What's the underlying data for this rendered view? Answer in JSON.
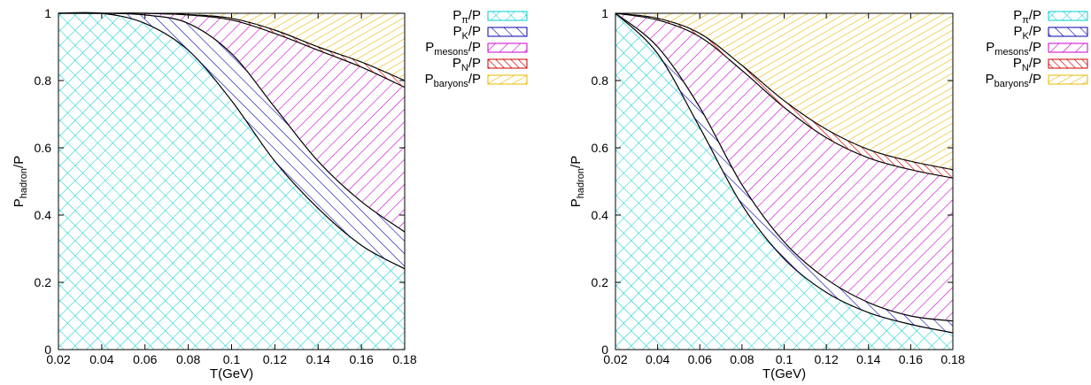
{
  "chart_data": [
    {
      "type": "area",
      "xlabel": "T(GeV)",
      "ylabel": "P_hadron/P",
      "xlim": [
        0.02,
        0.18
      ],
      "ylim": [
        0,
        1
      ],
      "xticks": [
        "0.02",
        "0.04",
        "0.06",
        "0.08",
        "0.1",
        "0.12",
        "0.14",
        "0.16",
        "0.18"
      ],
      "yticks": [
        "0",
        "0.2",
        "0.4",
        "0.6",
        "0.8",
        "1"
      ],
      "x": [
        0.02,
        0.04,
        0.06,
        0.08,
        0.1,
        0.12,
        0.14,
        0.16,
        0.18
      ],
      "series": [
        {
          "name": "P_π/P",
          "color": "#00cccc",
          "hatch": "crosshatch",
          "upper": [
            1.0,
            1.0,
            0.97,
            0.89,
            0.74,
            0.56,
            0.42,
            0.31,
            0.24
          ]
        },
        {
          "name": "P_K/P",
          "color": "#0000aa",
          "hatch": "diag-down",
          "upper": [
            1.0,
            1.0,
            0.995,
            0.97,
            0.88,
            0.72,
            0.56,
            0.44,
            0.35
          ]
        },
        {
          "name": "P_mesons/P",
          "color": "#cc00cc",
          "hatch": "diag-up",
          "upper": [
            1.0,
            1.0,
            1.0,
            0.995,
            0.98,
            0.94,
            0.89,
            0.84,
            0.78
          ]
        },
        {
          "name": "P_N/P",
          "color": "#cc0000",
          "hatch": "diag-down-dense",
          "upper": [
            1.0,
            1.0,
            1.0,
            0.996,
            0.985,
            0.95,
            0.9,
            0.855,
            0.8
          ]
        },
        {
          "name": "P_baryons/P",
          "color": "#e6b800",
          "hatch": "diag-up-dense",
          "upper": [
            1.0,
            1.0,
            1.0,
            1.0,
            1.0,
            1.0,
            1.0,
            1.0,
            1.0
          ]
        }
      ]
    },
    {
      "type": "area",
      "xlabel": "T(GeV)",
      "ylabel": "P_hadron/P",
      "xlim": [
        0.02,
        0.18
      ],
      "ylim": [
        0,
        1
      ],
      "xticks": [
        "0.02",
        "0.04",
        "0.06",
        "0.08",
        "0.1",
        "0.12",
        "0.14",
        "0.16",
        "0.18"
      ],
      "yticks": [
        "0",
        "0.2",
        "0.4",
        "0.6",
        "0.8",
        "1"
      ],
      "x": [
        0.02,
        0.04,
        0.06,
        0.08,
        0.1,
        0.12,
        0.14,
        0.16,
        0.18
      ],
      "series": [
        {
          "name": "P_π/P",
          "color": "#00cccc",
          "hatch": "crosshatch",
          "upper": [
            1.0,
            0.88,
            0.66,
            0.43,
            0.27,
            0.17,
            0.11,
            0.075,
            0.05
          ]
        },
        {
          "name": "P_K/P",
          "color": "#0000aa",
          "hatch": "diag-down",
          "upper": [
            1.0,
            0.9,
            0.72,
            0.49,
            0.32,
            0.21,
            0.14,
            0.1,
            0.085
          ]
        },
        {
          "name": "P_mesons/P",
          "color": "#cc00cc",
          "hatch": "diag-up",
          "upper": [
            1.0,
            0.98,
            0.93,
            0.83,
            0.72,
            0.63,
            0.57,
            0.535,
            0.51
          ]
        },
        {
          "name": "P_N/P",
          "color": "#cc0000",
          "hatch": "diag-down-dense",
          "upper": [
            1.0,
            0.985,
            0.94,
            0.845,
            0.74,
            0.655,
            0.595,
            0.56,
            0.535
          ]
        },
        {
          "name": "P_baryons/P",
          "color": "#e6b800",
          "hatch": "diag-up-dense",
          "upper": [
            1.0,
            1.0,
            1.0,
            1.0,
            1.0,
            1.0,
            1.0,
            1.0,
            1.0
          ]
        }
      ]
    }
  ],
  "legend": [
    {
      "main": "P",
      "sub": "π",
      "rest": "/P"
    },
    {
      "main": "P",
      "sub": "K",
      "rest": "/P"
    },
    {
      "main": "P",
      "sub": "mesons",
      "rest": "/P"
    },
    {
      "main": "P",
      "sub": "N",
      "rest": "/P"
    },
    {
      "main": "P",
      "sub": "baryons",
      "rest": "/P"
    }
  ],
  "ylabel_parts": {
    "main": "P",
    "sub": "hadron",
    "rest": "/P"
  }
}
